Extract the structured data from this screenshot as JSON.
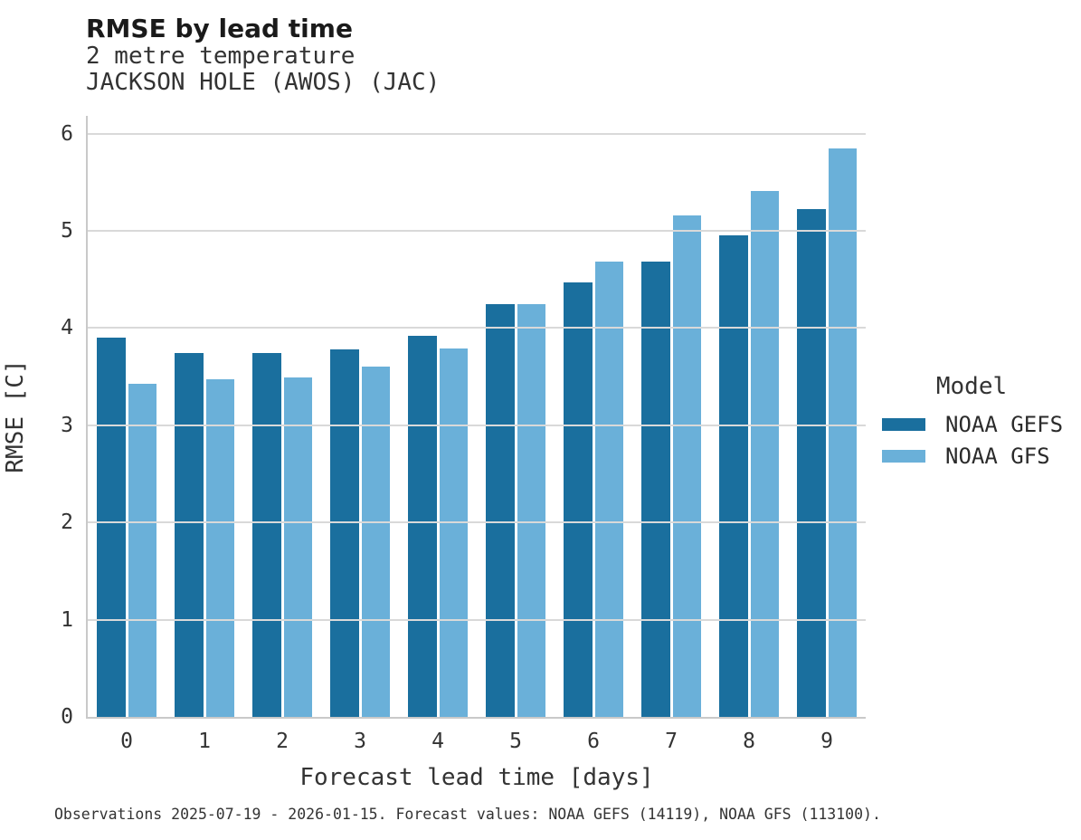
{
  "header": {
    "title": "RMSE by lead time",
    "subtitle_variable": "2 metre temperature",
    "subtitle_station": "JACKSON HOLE (AWOS) (JAC)"
  },
  "chart_data": {
    "type": "bar",
    "title": "RMSE by lead time",
    "subtitle": [
      "2 metre temperature",
      "JACKSON HOLE (AWOS) (JAC)"
    ],
    "xlabel": "Forecast lead time [days]",
    "ylabel": "RMSE [C]",
    "categories": [
      "0",
      "1",
      "2",
      "3",
      "4",
      "5",
      "6",
      "7",
      "8",
      "9"
    ],
    "series": [
      {
        "name": "NOAA GEFS",
        "color": "#1a6f9e",
        "values": [
          3.9,
          3.74,
          3.74,
          3.78,
          3.92,
          4.25,
          4.47,
          4.68,
          4.95,
          5.22
        ]
      },
      {
        "name": "NOAA GFS",
        "color": "#6ab0d9",
        "values": [
          3.43,
          3.47,
          3.49,
          3.6,
          3.79,
          4.25,
          4.68,
          5.16,
          5.41,
          5.85
        ]
      }
    ],
    "ylim": [
      0,
      6
    ],
    "yticks": [
      0,
      1,
      2,
      3,
      4,
      5,
      6
    ],
    "grid": "horizontal",
    "legend_position": "right",
    "legend_title": "Model"
  },
  "legend": {
    "title": "Model",
    "entries": [
      {
        "label": "NOAA GEFS",
        "color": "#1a6f9e"
      },
      {
        "label": "NOAA GFS",
        "color": "#6ab0d9"
      }
    ]
  },
  "colors": {
    "gefs": "#1a6f9e",
    "gfs": "#6ab0d9",
    "grid": "#d9d9d9",
    "axis": "#c9c9c9"
  },
  "caption": "Observations 2025-07-19 - 2026-01-15. Forecast values: NOAA GEFS (14119), NOAA GFS (113100)."
}
